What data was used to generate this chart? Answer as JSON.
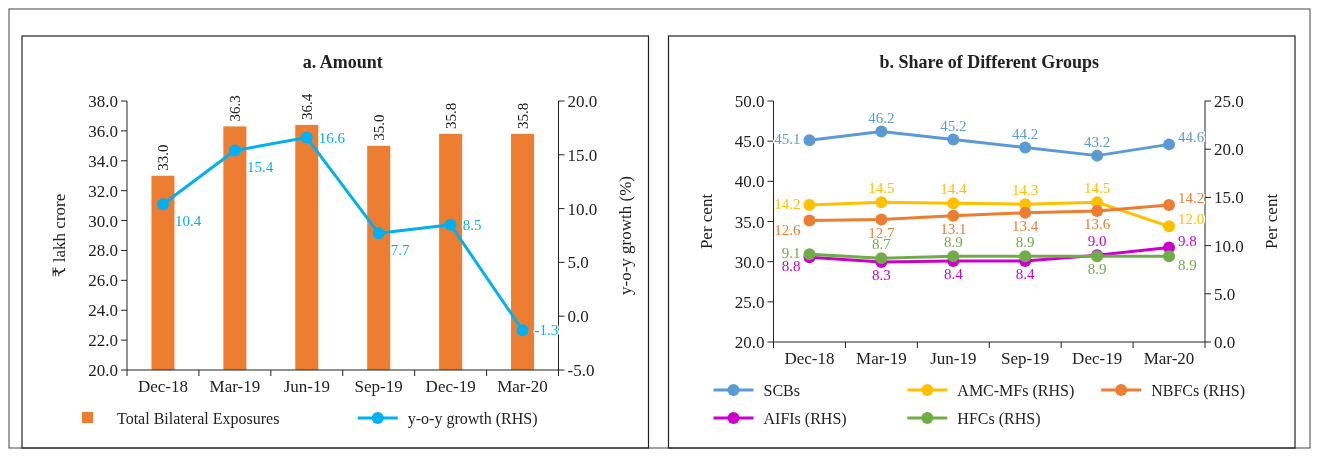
{
  "chart_data": [
    {
      "type": "bar",
      "title": "a. Amount",
      "categories": [
        "Dec-18",
        "Mar-19",
        "Jun-19",
        "Sep-19",
        "Dec-19",
        "Mar-20"
      ],
      "ylabel": "₹ lakh crore",
      "y2label": "y-o-y growth (%)",
      "series": [
        {
          "name": "Total Bilateral Exposures",
          "color": "#ed7d31",
          "values": [
            33.0,
            36.3,
            36.4,
            35.0,
            35.8,
            35.8
          ],
          "value_labels": [
            "33.0",
            "36.3",
            "36.4",
            "35.0",
            "35.8",
            "35.8"
          ]
        },
        {
          "name": "y-o-y growth (RHS)",
          "type": "line",
          "axis": "y2",
          "color": "#00b0f0",
          "values": [
            10.4,
            15.4,
            16.6,
            7.7,
            8.5,
            -1.3
          ],
          "value_labels": [
            "10.4",
            "15.4",
            "16.6",
            "7.7",
            "8.5",
            "-1.3"
          ]
        }
      ],
      "ylim": [
        20,
        38
      ],
      "yticks": [
        {
          "value": 20,
          "label": "20.0"
        },
        {
          "value": 22,
          "label": "22.0"
        },
        {
          "value": 24,
          "label": "24.0"
        },
        {
          "value": 26,
          "label": "26.0"
        },
        {
          "value": 28,
          "label": "28.0"
        },
        {
          "value": 30,
          "label": "30.0"
        },
        {
          "value": 32,
          "label": "32.0"
        },
        {
          "value": 34,
          "label": "34.0"
        },
        {
          "value": 36,
          "label": "36.0"
        },
        {
          "value": 38,
          "label": "38.0"
        }
      ],
      "y2lim": [
        -5,
        20
      ],
      "y2ticks": [
        {
          "value": -5,
          "label": "-5.0"
        },
        {
          "value": 0,
          "label": "0.0"
        },
        {
          "value": 5,
          "label": "5.0"
        },
        {
          "value": 10,
          "label": "10.0"
        },
        {
          "value": 15,
          "label": "15.0"
        },
        {
          "value": 20,
          "label": "20.0"
        }
      ],
      "legend": "bottom",
      "marker": "circle",
      "line_style": "solid"
    },
    {
      "type": "line",
      "title": "b. Share of Different Groups",
      "categories": [
        "Dec-18",
        "Mar-19",
        "Jun-19",
        "Sep-19",
        "Dec-19",
        "Mar-20"
      ],
      "ylabel": "Per cent",
      "y2label": "Per cent",
      "series": [
        {
          "name": "SCBs",
          "color": "#5b9bd5",
          "values": [
            45.1,
            46.2,
            45.2,
            44.2,
            43.2,
            44.6
          ],
          "value_labels": [
            "45.1",
            "46.2",
            "45.2",
            "44.2",
            "43.2",
            "44.6"
          ]
        },
        {
          "name": "AMC-MFs (RHS)",
          "axis": "y2",
          "color": "#ffc000",
          "values": [
            14.2,
            14.5,
            14.4,
            14.3,
            14.5,
            12.0
          ],
          "value_labels": [
            "14.2",
            "14.5",
            "14.4",
            "14.3",
            "14.5",
            "12.0"
          ]
        },
        {
          "name": "NBFCs (RHS)",
          "axis": "y2",
          "color": "#ed7d31",
          "values": [
            12.6,
            12.7,
            13.1,
            13.4,
            13.6,
            14.2
          ],
          "value_labels": [
            "12.6",
            "12.7",
            "13.1",
            "13.4",
            "13.6",
            "14.2"
          ]
        },
        {
          "name": "AIFIs (RHS)",
          "axis": "y2",
          "color": "#cc00cc",
          "values": [
            8.8,
            8.3,
            8.4,
            8.4,
            9.0,
            9.8
          ],
          "value_labels": [
            "8.8",
            "8.3",
            "8.4",
            "8.4",
            "9.0",
            "9.8"
          ]
        },
        {
          "name": "HFCs (RHS)",
          "axis": "y2",
          "color": "#70ad47",
          "values": [
            9.1,
            8.7,
            8.9,
            8.9,
            8.9,
            8.9
          ],
          "value_labels": [
            "9.1",
            "8.7",
            "8.9",
            "8.9",
            "8.9",
            "8.9"
          ]
        }
      ],
      "ylim": [
        20,
        50
      ],
      "yticks": [
        {
          "value": 20,
          "label": "20.0"
        },
        {
          "value": 25,
          "label": "25.0"
        },
        {
          "value": 30,
          "label": "30.0"
        },
        {
          "value": 35,
          "label": "35.0"
        },
        {
          "value": 40,
          "label": "40.0"
        },
        {
          "value": 45,
          "label": "45.0"
        },
        {
          "value": 50,
          "label": "50.0"
        }
      ],
      "y2lim": [
        0,
        25
      ],
      "y2ticks": [
        {
          "value": 0,
          "label": "0.0"
        },
        {
          "value": 5,
          "label": "5.0"
        },
        {
          "value": 10,
          "label": "10.0"
        },
        {
          "value": 15,
          "label": "15.0"
        },
        {
          "value": 20,
          "label": "20.0"
        },
        {
          "value": 25,
          "label": "25.0"
        }
      ],
      "legend": "bottom",
      "marker": "circle",
      "line_style": "solid"
    }
  ]
}
